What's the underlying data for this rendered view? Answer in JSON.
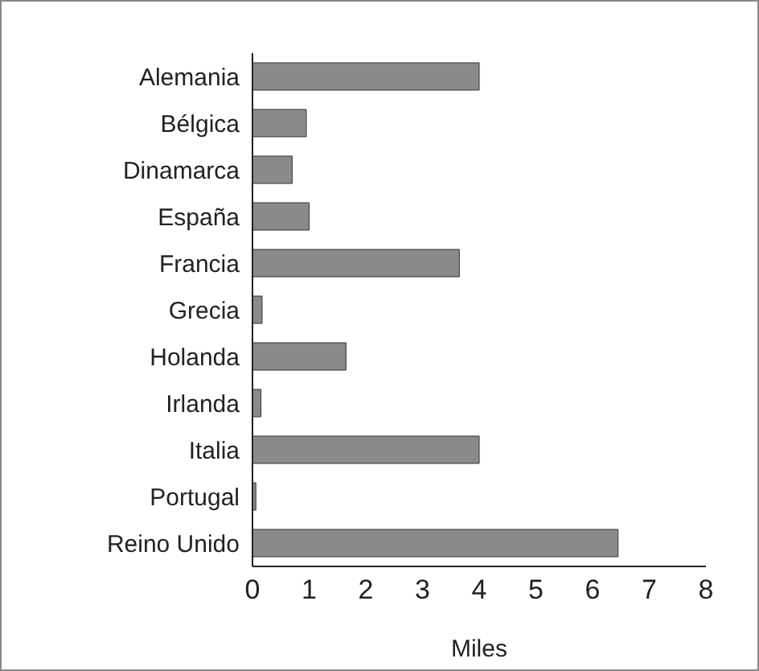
{
  "chart_data": {
    "type": "bar",
    "orientation": "horizontal",
    "xlabel": "Miles",
    "categories": [
      "Alemania",
      "Bélgica",
      "Dinamarca",
      "España",
      "Francia",
      "Grecia",
      "Holanda",
      "Irlanda",
      "Italia",
      "Portugal",
      "Reino Unido"
    ],
    "values": [
      4.0,
      0.95,
      0.7,
      1.0,
      3.65,
      0.17,
      1.65,
      0.15,
      4.0,
      0.06,
      6.45
    ],
    "color": "#8a8a8a",
    "xlim": [
      0,
      8
    ],
    "xticks": [
      0,
      1,
      2,
      3,
      4,
      5,
      6,
      7,
      8
    ],
    "grid": false
  }
}
